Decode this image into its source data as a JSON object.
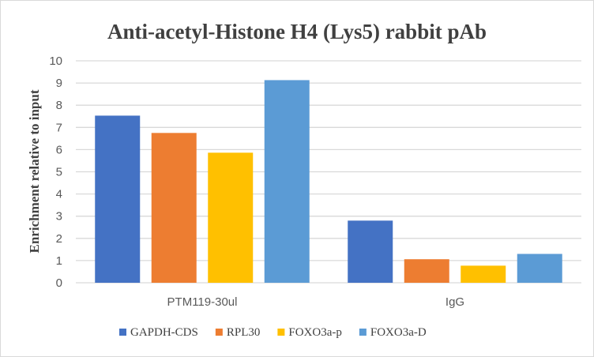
{
  "chart_data": {
    "type": "bar",
    "title": "Anti-acetyl-Histone H4 (Lys5) rabbit pAb",
    "xlabel": "",
    "ylabel": "Enrichment relative to input",
    "ylim": [
      0,
      10
    ],
    "yticks": [
      "0",
      "1",
      "2",
      "3",
      "4",
      "5",
      "6",
      "7",
      "8",
      "9",
      "10"
    ],
    "grid": true,
    "legend_position": "bottom",
    "categories": [
      "PTM119-30ul",
      "IgG"
    ],
    "series": [
      {
        "name": "GAPDH-CDS",
        "color": "#4472C4",
        "values": [
          7.53,
          2.8
        ]
      },
      {
        "name": "RPL30",
        "color": "#ED7D31",
        "values": [
          6.75,
          1.06
        ]
      },
      {
        "name": "FOXO3a-p",
        "color": "#FFC000",
        "values": [
          5.86,
          0.77
        ]
      },
      {
        "name": "FOXO3a-D",
        "color": "#5B9BD5",
        "values": [
          9.13,
          1.3
        ]
      }
    ]
  }
}
